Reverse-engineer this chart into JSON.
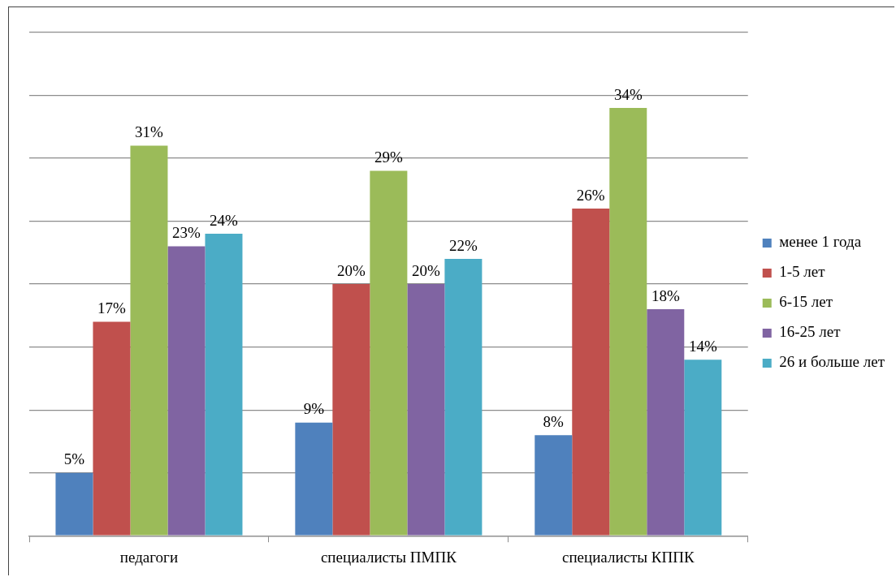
{
  "chart_data": {
    "type": "bar",
    "categories": [
      "педагоги",
      "специалисты ПМПК",
      "специалисты КППК"
    ],
    "series": [
      {
        "name": "менее 1 года",
        "color": "#4f81bd",
        "values": [
          5,
          9,
          8
        ],
        "value_labels": [
          "5%",
          "9%",
          "8%"
        ]
      },
      {
        "name": "1-5 лет",
        "color": "#c0504d",
        "values": [
          17,
          20,
          26
        ],
        "value_labels": [
          "17%",
          "20%",
          "26%"
        ]
      },
      {
        "name": "6-15 лет",
        "color": "#9bbb59",
        "values": [
          31,
          29,
          34
        ],
        "value_labels": [
          "31%",
          "29%",
          "34%"
        ]
      },
      {
        "name": "16-25 лет",
        "color": "#8064a2",
        "values": [
          23,
          20,
          18
        ],
        "value_labels": [
          "23%",
          "20%",
          "18%"
        ]
      },
      {
        "name": "26 и больше лет",
        "color": "#4bacc6",
        "values": [
          24,
          22,
          14
        ],
        "value_labels": [
          "24%",
          "22%",
          "14%"
        ]
      }
    ],
    "ylim": [
      0,
      40
    ],
    "yticks": [
      {
        "value": 0,
        "label": null
      },
      {
        "value": 5,
        "label": null
      },
      {
        "value": 10,
        "label": null
      },
      {
        "value": 15,
        "label": null
      },
      {
        "value": 20,
        "label": null
      },
      {
        "value": 25,
        "label": null
      },
      {
        "value": 30,
        "label": null
      },
      {
        "value": 35,
        "label": null
      },
      {
        "value": 40,
        "label": null
      }
    ],
    "tick_labels": "x",
    "grid": "y",
    "legend": "right"
  }
}
